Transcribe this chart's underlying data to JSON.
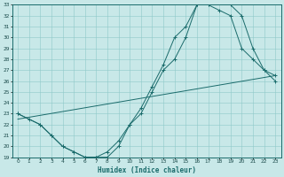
{
  "title": "",
  "xlabel": "Humidex (Indice chaleur)",
  "bg_color": "#c8e8e8",
  "grid_color": "#8ec8c8",
  "line_color": "#1a6b6b",
  "xlim": [
    -0.5,
    23.5
  ],
  "ylim": [
    19,
    33
  ],
  "xticks": [
    0,
    1,
    2,
    3,
    4,
    5,
    6,
    7,
    8,
    9,
    10,
    11,
    12,
    13,
    14,
    15,
    16,
    17,
    18,
    19,
    20,
    21,
    22,
    23
  ],
  "yticks": [
    19,
    20,
    21,
    22,
    23,
    24,
    25,
    26,
    27,
    28,
    29,
    30,
    31,
    32,
    33
  ],
  "line1_x": [
    0,
    1,
    2,
    3,
    4,
    5,
    6,
    7,
    8,
    9,
    10,
    11,
    12,
    13,
    14,
    15,
    16,
    17,
    18,
    19,
    20,
    21,
    22,
    23
  ],
  "line1_y": [
    23,
    22.5,
    22,
    21,
    20,
    19.5,
    19,
    19,
    19.5,
    20.5,
    22,
    23,
    25,
    27,
    28,
    30,
    33,
    33,
    32.5,
    32,
    29,
    28,
    27,
    26
  ],
  "line2_x": [
    0,
    2,
    3,
    4,
    5,
    6,
    7,
    8,
    9,
    10,
    11,
    12,
    13,
    14,
    15,
    16,
    17,
    19,
    20,
    21,
    22,
    23
  ],
  "line2_y": [
    23,
    22,
    21,
    20,
    19.5,
    19,
    19,
    19,
    20,
    22,
    23.5,
    25.5,
    27.5,
    30,
    31,
    33,
    33,
    33,
    32,
    29,
    27,
    26.5
  ],
  "line3_x": [
    0,
    23
  ],
  "line3_y": [
    22.5,
    26.5
  ]
}
